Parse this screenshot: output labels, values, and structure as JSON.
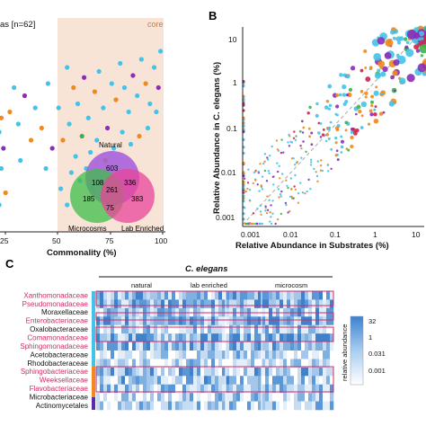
{
  "figure": {
    "panel_b_letter": "B",
    "panel_c_letter": "C"
  },
  "panel_a": {
    "legend_fragment": "as [n=62]",
    "core_label": "core",
    "xlabel": "Commonality (%)",
    "xticks": [
      "25",
      "50",
      "75",
      "100"
    ],
    "venn": {
      "labels": [
        "Natural",
        "Microcosms",
        "Lab Enriched"
      ],
      "values": [
        "603",
        "108",
        "336",
        "261",
        "185",
        "75",
        "383"
      ],
      "colors": [
        "#a259d9",
        "#3dbd4a",
        "#e8469a"
      ]
    }
  },
  "chart_data": [
    {
      "type": "scatter",
      "panel": "A",
      "xlabel": "Commonality (%)",
      "xlim": [
        20,
        100
      ],
      "xticks": [
        25,
        50,
        75,
        100
      ],
      "highlight_region": {
        "label": "core",
        "x_from": 50,
        "x_to": 100
      },
      "series_colors": [
        "#45c2e8",
        "#f08a1e",
        "#8a2fb4",
        "#cf1f4e",
        "#3bb34a"
      ],
      "points": [
        [
          22,
          0.62,
          2
        ],
        [
          24,
          0.55,
          1
        ],
        [
          23,
          0.48,
          0
        ],
        [
          25,
          0.4,
          2
        ],
        [
          21,
          0.36,
          1
        ],
        [
          24,
          0.3,
          0
        ],
        [
          22,
          0.22,
          3
        ],
        [
          26,
          0.18,
          1
        ],
        [
          23,
          0.12,
          0
        ],
        [
          30,
          0.7,
          0
        ],
        [
          28,
          0.58,
          1
        ],
        [
          32,
          0.52,
          0
        ],
        [
          35,
          0.66,
          2
        ],
        [
          38,
          0.44,
          1
        ],
        [
          33,
          0.34,
          0
        ],
        [
          40,
          0.6,
          0
        ],
        [
          43,
          0.5,
          1
        ],
        [
          46,
          0.72,
          0
        ],
        [
          48,
          0.4,
          2
        ],
        [
          45,
          0.3,
          0
        ],
        [
          55,
          0.8,
          0
        ],
        [
          58,
          0.7,
          1
        ],
        [
          60,
          0.62,
          0
        ],
        [
          63,
          0.75,
          2
        ],
        [
          65,
          0.55,
          0
        ],
        [
          68,
          0.68,
          1
        ],
        [
          70,
          0.78,
          0
        ],
        [
          72,
          0.6,
          0
        ],
        [
          74,
          0.5,
          2
        ],
        [
          76,
          0.72,
          0
        ],
        [
          78,
          0.64,
          1
        ],
        [
          80,
          0.82,
          0
        ],
        [
          82,
          0.7,
          0
        ],
        [
          84,
          0.58,
          0
        ],
        [
          86,
          0.76,
          2
        ],
        [
          88,
          0.66,
          0
        ],
        [
          90,
          0.84,
          0
        ],
        [
          92,
          0.72,
          1
        ],
        [
          94,
          0.62,
          0
        ],
        [
          96,
          0.8,
          0
        ],
        [
          98,
          0.7,
          2
        ],
        [
          99,
          0.88,
          0
        ],
        [
          97,
          0.58,
          0
        ],
        [
          93,
          0.5,
          0
        ],
        [
          89,
          0.46,
          1
        ],
        [
          85,
          0.42,
          0
        ],
        [
          81,
          0.48,
          0
        ],
        [
          77,
          0.4,
          0
        ],
        [
          73,
          0.34,
          1
        ],
        [
          69,
          0.44,
          0
        ],
        [
          66,
          0.38,
          0
        ],
        [
          62,
          0.46,
          4
        ],
        [
          59,
          0.36,
          0
        ],
        [
          56,
          0.52,
          0
        ],
        [
          53,
          0.44,
          1
        ],
        [
          51,
          0.6,
          0
        ],
        [
          57,
          0.28,
          0
        ],
        [
          61,
          0.24,
          0
        ],
        [
          64,
          0.3,
          0
        ],
        [
          52,
          0.2,
          0
        ],
        [
          55,
          0.12,
          0
        ],
        [
          67,
          0.2,
          0
        ]
      ]
    },
    {
      "type": "scatter",
      "panel": "B",
      "xlabel": "Relative Abundance in Substrates (%)",
      "ylabel": "Relative Abundance in C. elegans (%)",
      "xscale": "log",
      "yscale": "log",
      "xlim": [
        0.0005,
        30
      ],
      "ylim": [
        0.0005,
        30
      ],
      "xticks": [
        0.001,
        0.01,
        0.1,
        1,
        10
      ],
      "xticklabels": [
        "0.001",
        "0.01",
        "0.1",
        "1",
        "10"
      ],
      "yticks": [
        0.001,
        0.01,
        0.1,
        1,
        10
      ],
      "yticklabels": [
        "0.001",
        "0.01",
        "0.1",
        "1",
        "10"
      ],
      "reference_line": "y = x",
      "series_colors": [
        "#45c2e8",
        "#f08a1e",
        "#8a2fb4",
        "#cf1f4e",
        "#3bb34a"
      ]
    },
    {
      "type": "heatmap",
      "panel": "C",
      "title": "C. elegans",
      "column_groups": [
        "natural",
        "lab enriched",
        "microcosm"
      ],
      "rows": [
        "Xanthomonadaceae",
        "Pseudomonadaceae",
        "Moraxellaceae",
        "Enterobacteriaceae",
        "Oxalobacteraceae",
        "Comamonadaceae",
        "Sphingomonadaceae",
        "Acetobacteraceae",
        "Rhodobacteraceae",
        "Sphingobacteriaceae",
        "Weeksellaceae",
        "Flavobacteriaceae",
        "Microbacteriaceae",
        "Actinomycetales"
      ],
      "row_colors": [
        "#d42a6b",
        "#d42a6b",
        "#111111",
        "#d42a6b",
        "#111111",
        "#d42a6b",
        "#d42a6b",
        "#111111",
        "#111111",
        "#d42a6b",
        "#d42a6b",
        "#d42a6b",
        "#111111",
        "#111111"
      ],
      "highlighted_rows": [
        "Xanthomonadaceae",
        "Pseudomonadaceae",
        "Enterobacteriaceae",
        "Comamonadaceae",
        "Sphingomonadaceae",
        "Sphingobacteriaceae",
        "Weeksellaceae",
        "Flavobacteriaceae"
      ],
      "group_bar_colors": [
        "#45c2e8",
        "#f08a1e",
        "#5b2ba8"
      ],
      "colorbar": {
        "label": "relative abundance",
        "ticks": [
          "32",
          "1",
          "0.031",
          "0.001"
        ]
      }
    }
  ]
}
